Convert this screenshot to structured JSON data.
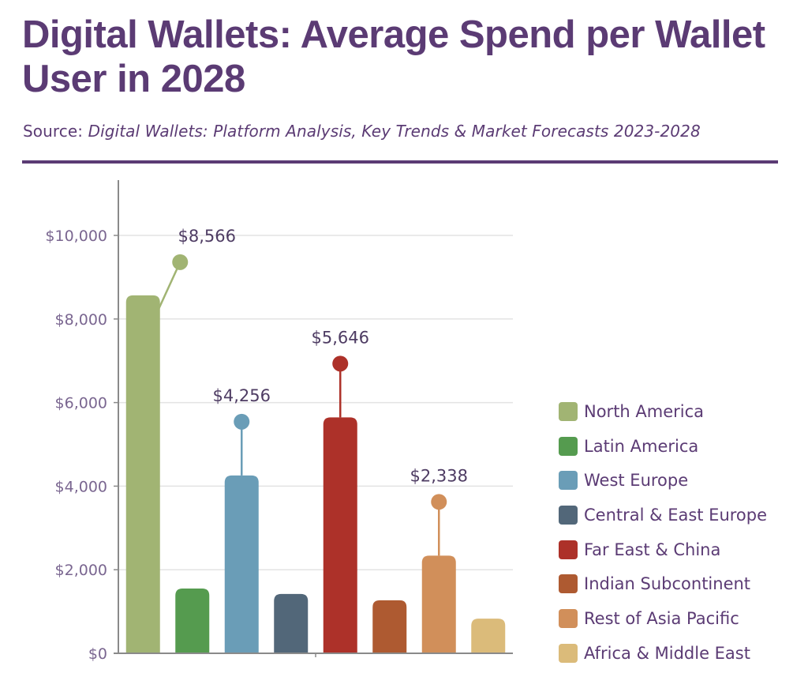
{
  "header": {
    "title": "Digital Wallets: Average Spend per Wallet User in 2028",
    "source_prefix": "Source: ",
    "source_title": "Digital Wallets: Platform Analysis, Key Trends & Market Forecasts 2023-2028"
  },
  "chart_data": {
    "type": "bar",
    "title": "Digital Wallets: Average Spend per Wallet User in 2028",
    "xlabel": "",
    "ylabel": "",
    "ylim": [
      0,
      11300
    ],
    "yticks": [
      0,
      2000,
      4000,
      6000,
      8000,
      10000
    ],
    "ytick_labels": [
      "$0",
      "$2,000",
      "$4,000",
      "$6,000",
      "$8,000",
      "$10,000"
    ],
    "grid": true,
    "legend_position": "right",
    "categories": [
      "North America",
      "Latin America",
      "West Europe",
      "Central & East Europe",
      "Far East & China",
      "Indian Subcontinent",
      "Rest of Asia Pacific",
      "Africa & Middle East"
    ],
    "values": [
      8566,
      1550,
      4256,
      1420,
      5646,
      1270,
      2338,
      830
    ],
    "data_labels": [
      "$8,566",
      null,
      "$4,256",
      null,
      "$5,646",
      null,
      "$2,338",
      null
    ],
    "colors": [
      "#a1b473",
      "#559b4f",
      "#6a9db7",
      "#526779",
      "#ad3129",
      "#ae5a31",
      "#d18f5a",
      "#dbbb7a"
    ]
  },
  "legend": {
    "items": [
      {
        "label": "North America",
        "color": "#a1b473"
      },
      {
        "label": "Latin America",
        "color": "#559b4f"
      },
      {
        "label": "West Europe",
        "color": "#6a9db7"
      },
      {
        "label": "Central & East Europe",
        "color": "#526779"
      },
      {
        "label": "Far East & China",
        "color": "#ad3129"
      },
      {
        "label": "Indian Subcontinent",
        "color": "#ae5a31"
      },
      {
        "label": "Rest of Asia Pacific",
        "color": "#d18f5a"
      },
      {
        "label": "Africa & Middle East",
        "color": "#dbbb7a"
      }
    ]
  },
  "theme": {
    "accent": "#5b3b74",
    "text": "#5b3b74",
    "axis": "#8a8a8a",
    "grid": "#e3e3e3"
  }
}
